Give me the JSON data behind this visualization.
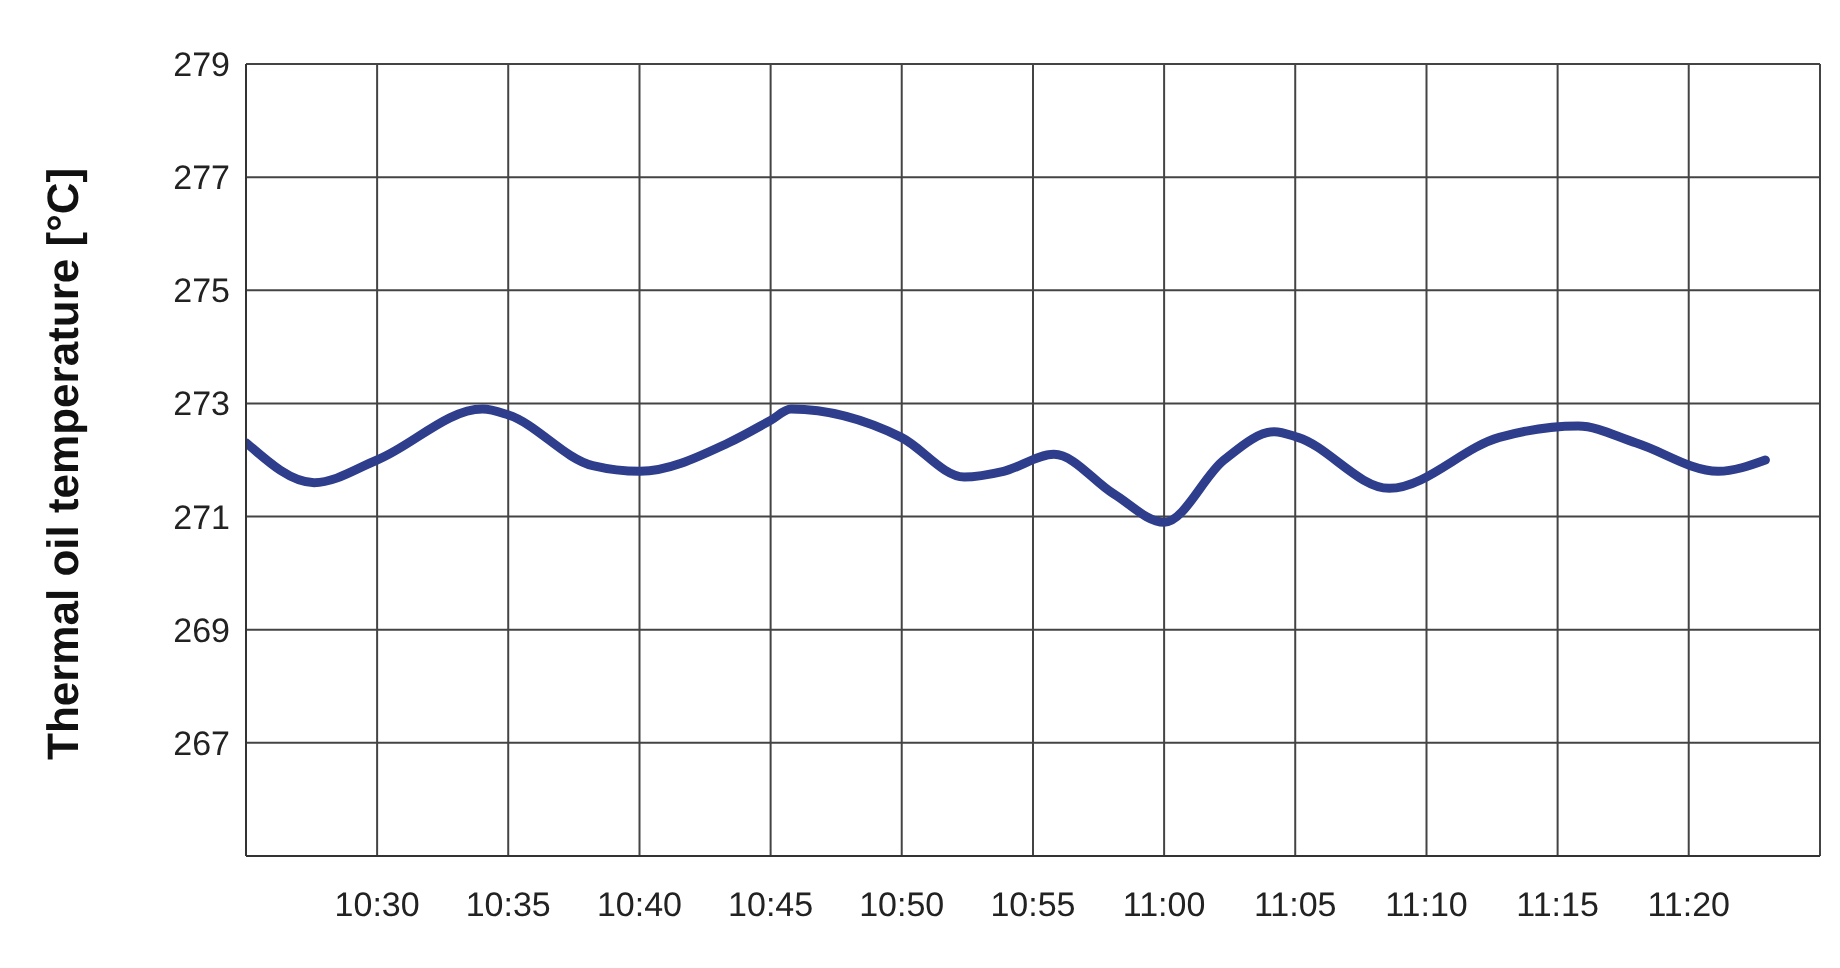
{
  "chart_data": {
    "type": "line",
    "ylabel": "Thermal oil temperature [°C]",
    "x": [
      10.417,
      10.46,
      10.5,
      10.567,
      10.583,
      10.637,
      10.667,
      10.723,
      10.75,
      10.763,
      10.833,
      10.873,
      10.898,
      10.93,
      10.968,
      11.0,
      11.038,
      11.07,
      11.085,
      11.143,
      11.213,
      11.263,
      11.3,
      11.352,
      11.382
    ],
    "series": [
      {
        "color": "#2e3d8c",
        "values": [
          272.3,
          271.6,
          272.0,
          272.9,
          272.8,
          271.9,
          271.8,
          272.3,
          272.7,
          272.9,
          272.4,
          271.7,
          271.8,
          272.1,
          271.4,
          270.9,
          272.0,
          272.5,
          272.4,
          271.5,
          272.4,
          272.6,
          272.3,
          271.8,
          272.0
        ]
      }
    ],
    "xlim": [
      10.4167,
      11.4167
    ],
    "xticks": [
      {
        "value": 10.5,
        "label": "10:30"
      },
      {
        "value": 10.5833,
        "label": "10:35"
      },
      {
        "value": 10.6667,
        "label": "10:40"
      },
      {
        "value": 10.75,
        "label": "10:45"
      },
      {
        "value": 10.8333,
        "label": "10:50"
      },
      {
        "value": 10.9167,
        "label": "10:55"
      },
      {
        "value": 11,
        "label": "11:00"
      },
      {
        "value": 11.0833,
        "label": "11:05"
      },
      {
        "value": 11.1667,
        "label": "11:10"
      },
      {
        "value": 11.25,
        "label": "11:15"
      },
      {
        "value": 11.3333,
        "label": "11:20"
      }
    ],
    "ylim": [
      265,
      279
    ],
    "yticks": [
      267,
      269,
      271,
      273,
      275,
      277,
      279
    ],
    "grid": true,
    "legend": false,
    "marker": "none",
    "line_style": "solid"
  }
}
